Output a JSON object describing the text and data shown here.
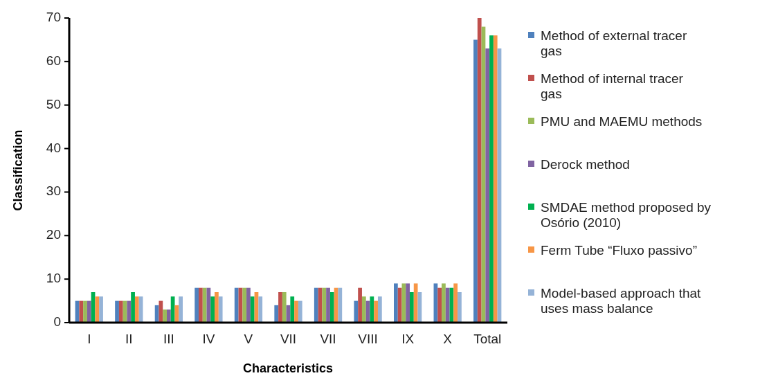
{
  "chart_data": {
    "type": "bar",
    "xlabel": "Characteristics",
    "ylabel": "Classification",
    "categories": [
      "I",
      "II",
      "III",
      "IV",
      "V",
      "VII",
      "VII",
      "VIII",
      "IX",
      "X",
      "Total"
    ],
    "series": [
      {
        "name": "Method of external tracer gas",
        "color": "#4f81bd",
        "values": [
          5,
          5,
          4,
          8,
          8,
          4,
          8,
          5,
          9,
          9,
          65
        ]
      },
      {
        "name": "Method of internal tracer gas",
        "color": "#c0504d",
        "values": [
          5,
          5,
          5,
          8,
          8,
          7,
          8,
          8,
          8,
          8,
          70
        ]
      },
      {
        "name": "PMU and MAEMU methods",
        "color": "#9bbb59",
        "values": [
          5,
          5,
          3,
          8,
          8,
          7,
          8,
          6,
          9,
          9,
          68
        ]
      },
      {
        "name": "Derock method",
        "color": "#8064a2",
        "values": [
          5,
          5,
          3,
          8,
          8,
          4,
          8,
          5,
          9,
          8,
          63
        ]
      },
      {
        "name": "SMDAE method proposed by Osório (2010)",
        "color": "#00b050",
        "values": [
          7,
          7,
          6,
          6,
          6,
          6,
          7,
          6,
          7,
          8,
          66
        ]
      },
      {
        "name": "Ferm Tube “Fluxo passivo”",
        "color": "#f79646",
        "values": [
          6,
          6,
          4,
          7,
          7,
          5,
          8,
          5,
          9,
          9,
          66
        ]
      },
      {
        "name": "Model-based approach that uses mass balance",
        "color": "#95b3d7",
        "values": [
          6,
          6,
          6,
          6,
          6,
          5,
          8,
          6,
          7,
          7,
          63
        ]
      }
    ],
    "ylim": [
      0,
      70
    ],
    "yticks": [
      0,
      10,
      20,
      30,
      40,
      50,
      60,
      70
    ],
    "grid": false,
    "legend": "right"
  }
}
